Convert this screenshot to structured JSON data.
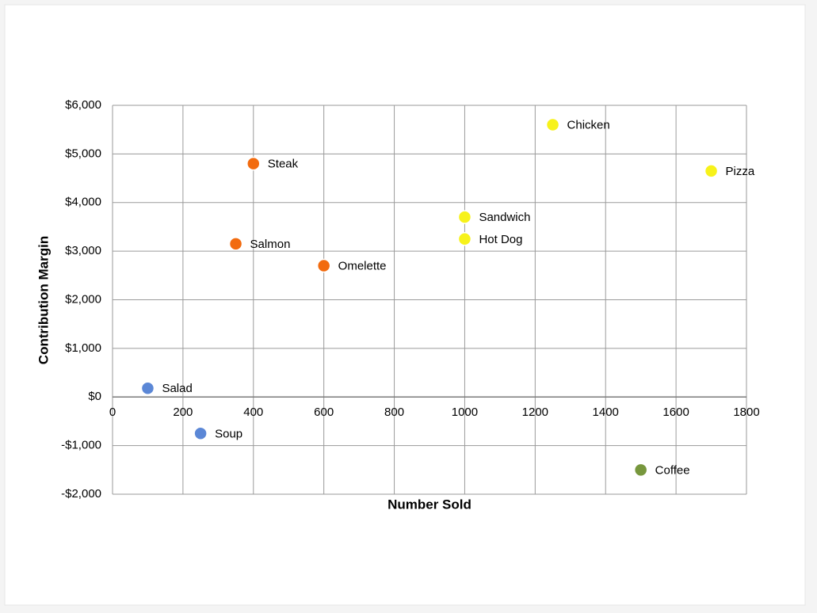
{
  "chart_data": {
    "type": "scatter",
    "x_label": "Number Sold",
    "y_label": "Contribution Margin",
    "xlim": [
      0,
      1800
    ],
    "xticks": [
      0,
      200,
      400,
      600,
      800,
      1000,
      1200,
      1400,
      1600,
      1800
    ],
    "ylim": [
      -2000,
      6000
    ],
    "yticks": [
      {
        "value": -2000,
        "label": "-$2,000"
      },
      {
        "value": -1000,
        "label": "-$1,000"
      },
      {
        "value": 0,
        "label": "$0"
      },
      {
        "value": 1000,
        "label": "$1,000"
      },
      {
        "value": 2000,
        "label": "$2,000"
      },
      {
        "value": 3000,
        "label": "$3,000"
      },
      {
        "value": 4000,
        "label": "$4,000"
      },
      {
        "value": 5000,
        "label": "$5,000"
      },
      {
        "value": 6000,
        "label": "$6,000"
      }
    ],
    "grid": true,
    "series": [
      {
        "color": "#5b87d6",
        "labels": [
          "Salad",
          "Soup"
        ],
        "x": [
          100,
          250
        ],
        "values": [
          180,
          -750
        ]
      },
      {
        "color": "#f26b0f",
        "labels": [
          "Steak",
          "Salmon",
          "Omelette"
        ],
        "x": [
          400,
          350,
          600
        ],
        "values": [
          4800,
          3150,
          2700
        ]
      },
      {
        "color": "#f7f21a",
        "labels": [
          "Chicken",
          "Pizza",
          "Sandwich",
          "Hot Dog"
        ],
        "x": [
          1250,
          1700,
          1000,
          1000
        ],
        "values": [
          5600,
          4650,
          3700,
          3250
        ]
      },
      {
        "color": "#77973d",
        "labels": [
          "Coffee"
        ],
        "x": [
          1500
        ],
        "values": [
          -1500
        ]
      }
    ]
  }
}
